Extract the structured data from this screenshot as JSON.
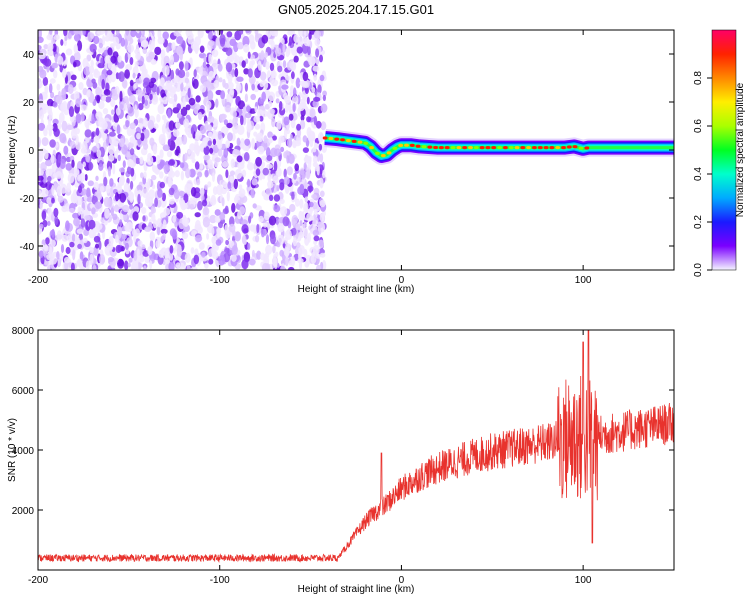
{
  "chart_data": [
    {
      "type": "heatmap",
      "title": "GN05.2025.204.17.15.G01",
      "xlabel": "Height of straight line (km)",
      "ylabel": "Frequency (Hz)",
      "xlim": [
        -200,
        150
      ],
      "ylim": [
        -50,
        50
      ],
      "x_ticks": [
        -200,
        -100,
        0,
        100
      ],
      "y_ticks": [
        -40,
        -20,
        0,
        20,
        40
      ],
      "colorbar": {
        "label": "Normalized spectral amplitude",
        "range": [
          0,
          1
        ],
        "ticks": [
          0.0,
          0.2,
          0.4,
          0.6,
          0.8
        ],
        "tick_labels": [
          "0.0",
          "0.2",
          "0.4",
          "0.6",
          "0.8"
        ],
        "placement": "right"
      },
      "noise_region": {
        "x_range": [
          -200,
          -40
        ],
        "color": "#7b1fe8",
        "mean_amplitude": 0.15
      },
      "signal_ridge": {
        "x": [
          -42,
          -35,
          -30,
          -25,
          -20,
          -17,
          -14,
          -11,
          -8,
          -5,
          -2,
          0,
          5,
          10,
          20,
          40,
          60,
          80,
          90,
          95,
          100,
          103,
          110,
          130,
          150
        ],
        "y": [
          5,
          4.5,
          4,
          3.5,
          3,
          1.5,
          -1,
          -2.5,
          -2,
          0,
          1.5,
          2,
          2,
          1.5,
          1,
          1,
          1,
          1,
          1,
          1.5,
          0.5,
          1,
          1,
          1,
          1
        ],
        "peak_amplitude": 0.9
      },
      "grid": false
    },
    {
      "type": "line",
      "title": "",
      "xlabel": "Height of straight line (km)",
      "ylabel": "SNR (10 * v/v)",
      "xlim": [
        -200,
        150
      ],
      "ylim": [
        0,
        8000
      ],
      "x_ticks": [
        -200,
        -100,
        0,
        100
      ],
      "y_ticks": [
        2000,
        4000,
        6000,
        8000
      ],
      "series": [
        {
          "color": "#e8322d",
          "x": [
            -200,
            -150,
            -100,
            -50,
            -35,
            -30,
            -25,
            -20,
            -15,
            -10,
            -5,
            0,
            10,
            20,
            30,
            40,
            50,
            60,
            70,
            80,
            90,
            95,
            100,
            105,
            110,
            120,
            130,
            140,
            150
          ],
          "values": [
            400,
            400,
            400,
            400,
            400,
            800,
            1200,
            1600,
            1900,
            2100,
            2400,
            2700,
            3100,
            3400,
            3600,
            3800,
            3950,
            4050,
            4150,
            4250,
            4350,
            4400,
            4400,
            4450,
            4500,
            4600,
            4700,
            4800,
            4900
          ]
        }
      ],
      "spikes": {
        "x": [
          -11,
          90,
          100,
          103,
          105
        ],
        "values": [
          3900,
          5500,
          7600,
          8000,
          900
        ]
      },
      "grid": false
    }
  ]
}
